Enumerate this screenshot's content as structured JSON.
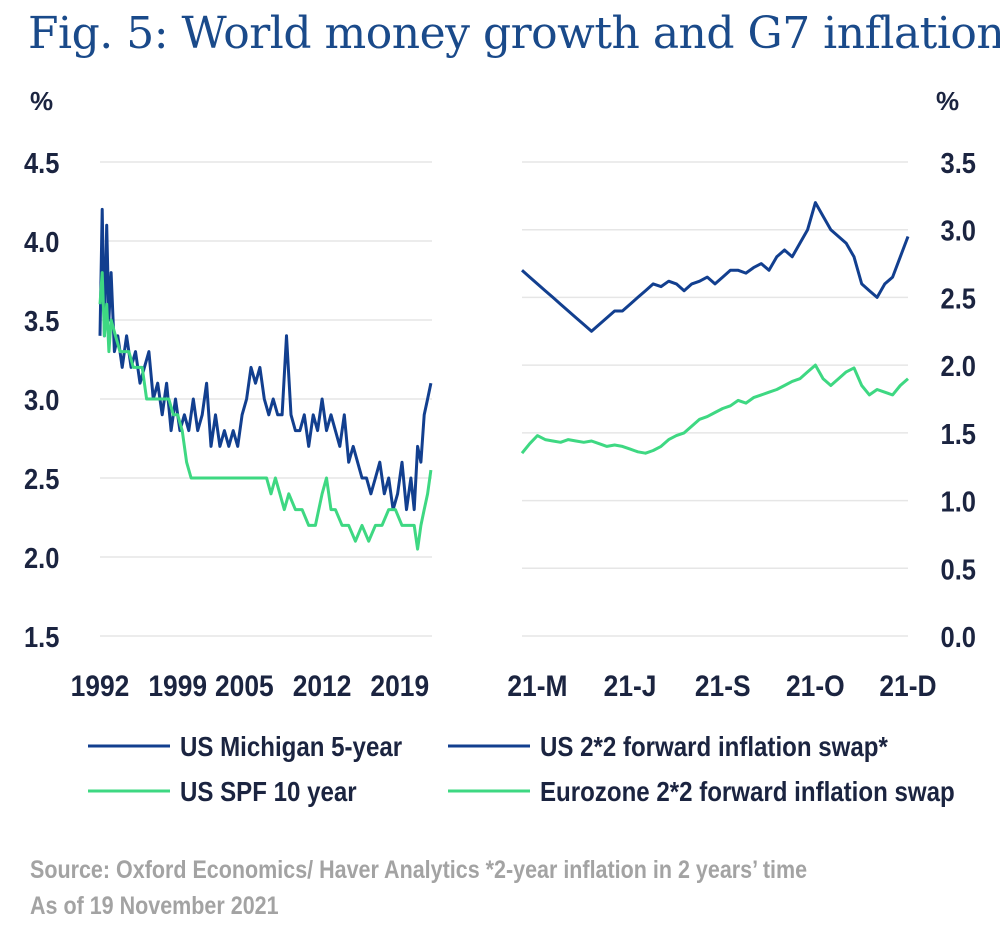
{
  "title": "Fig. 5: World money growth and G7 inflation",
  "source_lines": [
    "Source: Oxford Economics/ Haver Analytics *2-year inflation in 2 years’ time",
    "As of 19 November 2021"
  ],
  "colors": {
    "dark_blue": "#123f8f",
    "green": "#3ed882",
    "grid": "#e6e6e6",
    "text": "#1b2440",
    "title": "#1a4a8a"
  },
  "chart_data": [
    {
      "type": "line",
      "unit_label": "%",
      "ylim": [
        1.5,
        4.5
      ],
      "yticks": [
        "4.5",
        "4.0",
        "3.5",
        "3.0",
        "2.5",
        "2.0",
        "1.5"
      ],
      "xlim": [
        1992,
        2021.9
      ],
      "xtick_values": [
        1992,
        1999,
        2005,
        2012,
        2019
      ],
      "xtick_labels": [
        "1992",
        "1999",
        "2005",
        "2012",
        "2019"
      ],
      "series": [
        {
          "name": "US Michigan 5-year",
          "color": "#123f8f",
          "x": [
            1992.0,
            1992.2,
            1992.4,
            1992.6,
            1992.8,
            1993.0,
            1993.3,
            1993.6,
            1994.0,
            1994.4,
            1994.8,
            1995.2,
            1995.6,
            1996.0,
            1996.4,
            1996.8,
            1997.2,
            1997.6,
            1998.0,
            1998.4,
            1998.8,
            1999.2,
            1999.6,
            2000.0,
            2000.4,
            2000.8,
            2001.2,
            2001.6,
            2002.0,
            2002.4,
            2002.8,
            2003.2,
            2003.6,
            2004.0,
            2004.4,
            2004.8,
            2005.2,
            2005.6,
            2006.0,
            2006.4,
            2006.8,
            2007.2,
            2007.6,
            2008.0,
            2008.4,
            2008.8,
            2009.2,
            2009.6,
            2010.0,
            2010.4,
            2010.8,
            2011.2,
            2011.6,
            2012.0,
            2012.4,
            2012.8,
            2013.2,
            2013.6,
            2014.0,
            2014.4,
            2014.8,
            2015.2,
            2015.6,
            2016.0,
            2016.4,
            2016.8,
            2017.2,
            2017.6,
            2018.0,
            2018.4,
            2018.8,
            2019.2,
            2019.6,
            2020.0,
            2020.3,
            2020.6,
            2020.9,
            2021.2,
            2021.5,
            2021.8
          ],
          "values": [
            3.4,
            4.2,
            3.4,
            4.1,
            3.5,
            3.8,
            3.3,
            3.4,
            3.2,
            3.4,
            3.2,
            3.3,
            3.1,
            3.2,
            3.3,
            3.0,
            3.1,
            2.9,
            3.1,
            2.8,
            3.0,
            2.8,
            2.9,
            2.8,
            3.0,
            2.8,
            2.9,
            3.1,
            2.7,
            2.9,
            2.7,
            2.8,
            2.7,
            2.8,
            2.7,
            2.9,
            3.0,
            3.2,
            3.1,
            3.2,
            3.0,
            2.9,
            3.0,
            2.9,
            2.9,
            3.4,
            2.9,
            2.8,
            2.8,
            2.9,
            2.7,
            2.9,
            2.8,
            3.0,
            2.8,
            2.9,
            2.8,
            2.7,
            2.9,
            2.6,
            2.7,
            2.6,
            2.5,
            2.5,
            2.4,
            2.5,
            2.6,
            2.4,
            2.5,
            2.3,
            2.4,
            2.6,
            2.3,
            2.5,
            2.3,
            2.7,
            2.6,
            2.9,
            3.0,
            3.1
          ]
        },
        {
          "name": "US SPF 10 year",
          "color": "#3ed882",
          "x": [
            1992.0,
            1992.2,
            1992.4,
            1992.6,
            1992.8,
            1993.0,
            1993.4,
            1993.8,
            1994.2,
            1994.6,
            1995.0,
            1995.4,
            1995.8,
            1996.2,
            1996.6,
            1997.0,
            1997.4,
            1997.8,
            1998.2,
            1998.6,
            1999.0,
            1999.4,
            1999.8,
            2000.2,
            2001.0,
            2002.0,
            2003.0,
            2004.0,
            2005.0,
            2006.0,
            2007.0,
            2007.4,
            2007.8,
            2008.2,
            2008.6,
            2009.0,
            2009.6,
            2010.2,
            2010.8,
            2011.4,
            2012.0,
            2012.4,
            2012.8,
            2013.2,
            2013.8,
            2014.4,
            2015.0,
            2015.6,
            2016.2,
            2016.8,
            2017.4,
            2018.0,
            2018.6,
            2019.2,
            2019.6,
            2020.0,
            2020.3,
            2020.6,
            2020.9,
            2021.2,
            2021.5,
            2021.8
          ],
          "values": [
            3.6,
            3.8,
            3.4,
            3.6,
            3.3,
            3.5,
            3.4,
            3.3,
            3.3,
            3.3,
            3.2,
            3.2,
            3.2,
            3.0,
            3.0,
            3.0,
            3.0,
            3.0,
            3.0,
            2.9,
            2.9,
            2.8,
            2.6,
            2.5,
            2.5,
            2.5,
            2.5,
            2.5,
            2.5,
            2.5,
            2.5,
            2.4,
            2.5,
            2.4,
            2.3,
            2.4,
            2.3,
            2.3,
            2.2,
            2.2,
            2.4,
            2.5,
            2.3,
            2.3,
            2.2,
            2.2,
            2.1,
            2.2,
            2.1,
            2.2,
            2.2,
            2.3,
            2.3,
            2.2,
            2.2,
            2.2,
            2.2,
            2.05,
            2.2,
            2.3,
            2.4,
            2.55
          ]
        }
      ]
    },
    {
      "type": "line",
      "unit_label": "%",
      "ylim": [
        0.0,
        3.5
      ],
      "yticks": [
        "3.5",
        "3.0",
        "2.5",
        "2.0",
        "1.5",
        "1.0",
        "0.5",
        "0.0"
      ],
      "xlim": [
        0,
        100
      ],
      "xtick_values": [
        4,
        28,
        52,
        76,
        100
      ],
      "xtick_labels": [
        "21-M",
        "21-J",
        "21-S",
        "21-O",
        "21-D"
      ],
      "series": [
        {
          "name": "US 2*2 forward inflation swap*",
          "color": "#123f8f",
          "x": [
            0,
            2,
            4,
            6,
            8,
            10,
            12,
            14,
            16,
            18,
            20,
            22,
            24,
            26,
            28,
            30,
            32,
            34,
            36,
            38,
            40,
            42,
            44,
            46,
            48,
            50,
            52,
            54,
            56,
            58,
            60,
            62,
            64,
            66,
            68,
            70,
            72,
            74,
            76,
            78,
            80,
            82,
            84,
            86,
            88,
            90,
            92,
            94,
            96,
            98,
            100
          ],
          "values": [
            2.7,
            2.65,
            2.6,
            2.55,
            2.5,
            2.45,
            2.4,
            2.35,
            2.3,
            2.25,
            2.3,
            2.35,
            2.4,
            2.4,
            2.45,
            2.5,
            2.55,
            2.6,
            2.58,
            2.62,
            2.6,
            2.55,
            2.6,
            2.62,
            2.65,
            2.6,
            2.65,
            2.7,
            2.7,
            2.68,
            2.72,
            2.75,
            2.7,
            2.8,
            2.85,
            2.8,
            2.9,
            3.0,
            3.2,
            3.1,
            3.0,
            2.95,
            2.9,
            2.8,
            2.6,
            2.55,
            2.5,
            2.6,
            2.65,
            2.8,
            2.95
          ]
        },
        {
          "name": "Eurozone 2*2 forward inflation swap",
          "color": "#3ed882",
          "x": [
            0,
            2,
            4,
            6,
            8,
            10,
            12,
            14,
            16,
            18,
            20,
            22,
            24,
            26,
            28,
            30,
            32,
            34,
            36,
            38,
            40,
            42,
            44,
            46,
            48,
            50,
            52,
            54,
            56,
            58,
            60,
            62,
            64,
            66,
            68,
            70,
            72,
            74,
            76,
            78,
            80,
            82,
            84,
            86,
            88,
            90,
            92,
            94,
            96,
            98,
            100
          ],
          "values": [
            1.35,
            1.42,
            1.48,
            1.45,
            1.44,
            1.43,
            1.45,
            1.44,
            1.43,
            1.44,
            1.42,
            1.4,
            1.41,
            1.4,
            1.38,
            1.36,
            1.35,
            1.37,
            1.4,
            1.45,
            1.48,
            1.5,
            1.55,
            1.6,
            1.62,
            1.65,
            1.68,
            1.7,
            1.74,
            1.72,
            1.76,
            1.78,
            1.8,
            1.82,
            1.85,
            1.88,
            1.9,
            1.95,
            2.0,
            1.9,
            1.85,
            1.9,
            1.95,
            1.98,
            1.85,
            1.78,
            1.82,
            1.8,
            1.78,
            1.85,
            1.9
          ]
        }
      ]
    }
  ]
}
